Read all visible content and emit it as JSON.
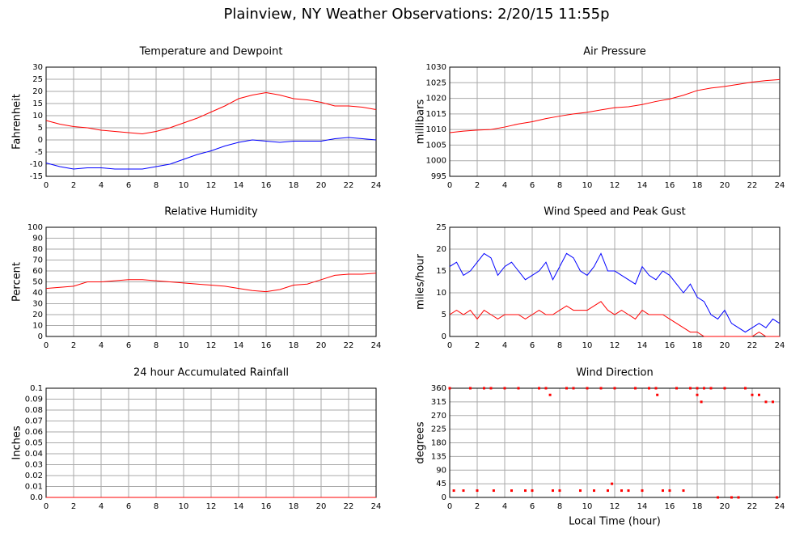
{
  "title": "Plainview, NY Weather Observations: 2/20/15 11:55p",
  "chart_data": [
    {
      "type": "line",
      "title": "Temperature and Dewpoint",
      "ylabel": "Fahrenheit",
      "x": [
        0,
        1,
        2,
        3,
        4,
        5,
        6,
        7,
        8,
        9,
        10,
        11,
        12,
        13,
        14,
        15,
        16,
        17,
        18,
        19,
        20,
        21,
        22,
        23,
        24
      ],
      "series": [
        {
          "color": "#ff0000",
          "values": [
            8,
            6.5,
            5.5,
            5,
            4,
            3.5,
            3,
            2.5,
            3.5,
            5,
            7,
            9,
            11.5,
            14,
            17,
            18.5,
            19.5,
            18.5,
            17,
            16.5,
            15.5,
            14,
            14,
            13.5,
            12.5
          ]
        },
        {
          "color": "#0000ff",
          "values": [
            -9.5,
            -11,
            -12,
            -11.5,
            -11.5,
            -12,
            -12,
            -12,
            -11,
            -10,
            -8,
            -6,
            -4.5,
            -2.5,
            -1,
            0,
            -0.5,
            -1,
            -0.5,
            -0.5,
            -0.5,
            0.5,
            1,
            0.5,
            0
          ]
        }
      ],
      "xlim": [
        0,
        24
      ],
      "xticks": [
        0,
        2,
        4,
        6,
        8,
        10,
        12,
        14,
        16,
        18,
        20,
        22,
        24
      ],
      "ylim": [
        -15,
        30
      ],
      "yticks": [
        -15,
        -10,
        -5,
        0,
        5,
        10,
        15,
        20,
        25,
        30
      ],
      "grid": true
    },
    {
      "type": "line",
      "title": "Air Pressure",
      "ylabel": "millibars",
      "x": [
        0,
        1,
        2,
        3,
        4,
        5,
        6,
        7,
        8,
        9,
        10,
        11,
        12,
        13,
        14,
        15,
        16,
        17,
        18,
        19,
        20,
        21,
        22,
        23,
        24
      ],
      "series": [
        {
          "color": "#ff0000",
          "values": [
            1009,
            1009.5,
            1009.8,
            1010,
            1010.8,
            1011.8,
            1012.5,
            1013.5,
            1014.3,
            1015,
            1015.5,
            1016.3,
            1017,
            1017.3,
            1018,
            1019,
            1019.8,
            1021,
            1022.5,
            1023.3,
            1023.8,
            1024.5,
            1025.2,
            1025.7,
            1026
          ]
        }
      ],
      "xlim": [
        0,
        24
      ],
      "xticks": [
        0,
        2,
        4,
        6,
        8,
        10,
        12,
        14,
        16,
        18,
        20,
        22,
        24
      ],
      "ylim": [
        995,
        1030
      ],
      "yticks": [
        995,
        1000,
        1005,
        1010,
        1015,
        1020,
        1025,
        1030
      ],
      "grid": true
    },
    {
      "type": "line",
      "title": "Relative Humidity",
      "ylabel": "Percent",
      "x": [
        0,
        1,
        2,
        3,
        4,
        5,
        6,
        7,
        8,
        9,
        10,
        11,
        12,
        13,
        14,
        15,
        16,
        17,
        18,
        19,
        20,
        21,
        22,
        23,
        24
      ],
      "series": [
        {
          "color": "#ff0000",
          "values": [
            44,
            45,
            46,
            50,
            50,
            51,
            52,
            52,
            51,
            50,
            49,
            48,
            47,
            46,
            44,
            42,
            41,
            43,
            47,
            48,
            52,
            56,
            57,
            57,
            58
          ]
        }
      ],
      "xlim": [
        0,
        24
      ],
      "xticks": [
        0,
        2,
        4,
        6,
        8,
        10,
        12,
        14,
        16,
        18,
        20,
        22,
        24
      ],
      "ylim": [
        0,
        100
      ],
      "yticks": [
        0,
        10,
        20,
        30,
        40,
        50,
        60,
        70,
        80,
        90,
        100
      ],
      "grid": true
    },
    {
      "type": "line",
      "title": "Wind Speed and Peak Gust",
      "ylabel": "miles/hour",
      "x": [
        0,
        0.5,
        1,
        1.5,
        2,
        2.5,
        3,
        3.5,
        4,
        4.5,
        5,
        5.5,
        6,
        6.5,
        7,
        7.5,
        8,
        8.5,
        9,
        9.5,
        10,
        10.5,
        11,
        11.5,
        12,
        12.5,
        13,
        13.5,
        14,
        14.5,
        15,
        15.5,
        16,
        16.5,
        17,
        17.5,
        18,
        18.5,
        19,
        19.5,
        20,
        20.5,
        21,
        21.5,
        22,
        22.5,
        23,
        23.5,
        24
      ],
      "series": [
        {
          "color": "#0000ff",
          "values": [
            16,
            17,
            14,
            15,
            17,
            19,
            18,
            14,
            16,
            17,
            15,
            13,
            14,
            15,
            17,
            13,
            16,
            19,
            18,
            15,
            14,
            16,
            19,
            15,
            15,
            14,
            13,
            12,
            16,
            14,
            13,
            15,
            14,
            12,
            10,
            12,
            9,
            8,
            5,
            4,
            6,
            3,
            2,
            1,
            2,
            3,
            2,
            4,
            3
          ]
        },
        {
          "color": "#ff0000",
          "values": [
            5,
            6,
            5,
            6,
            4,
            6,
            5,
            4,
            5,
            5,
            5,
            4,
            5,
            6,
            5,
            5,
            6,
            7,
            6,
            6,
            6,
            7,
            8,
            6,
            5,
            6,
            5,
            4,
            6,
            5,
            5,
            5,
            4,
            3,
            2,
            1,
            1,
            0,
            0,
            0,
            0,
            0,
            0,
            0,
            0,
            1,
            0,
            0,
            0
          ]
        }
      ],
      "xlim": [
        0,
        24
      ],
      "xticks": [
        0,
        2,
        4,
        6,
        8,
        10,
        12,
        14,
        16,
        18,
        20,
        22,
        24
      ],
      "ylim": [
        0,
        25
      ],
      "yticks": [
        0,
        5,
        10,
        15,
        20,
        25
      ],
      "grid": true
    },
    {
      "type": "line",
      "title": "24 hour Accumulated Rainfall",
      "ylabel": "Inches",
      "x": [
        0,
        24
      ],
      "series": [
        {
          "color": "#ff0000",
          "values": [
            0,
            0
          ]
        }
      ],
      "xlim": [
        0,
        24
      ],
      "xticks": [
        0,
        2,
        4,
        6,
        8,
        10,
        12,
        14,
        16,
        18,
        20,
        22,
        24
      ],
      "ylim": [
        0,
        0.1
      ],
      "yticks": [
        {
          "value": 0,
          "label": "0.0"
        },
        0.01,
        0.02,
        0.03,
        0.04,
        0.05,
        0.06,
        0.07,
        0.08,
        0.09,
        0.1
      ],
      "grid": true
    },
    {
      "type": "scatter",
      "title": "Wind Direction",
      "ylabel": "degrees",
      "xlabel": "Local Time (hour)",
      "x": [
        0,
        0.3,
        1,
        1.5,
        2,
        2.5,
        3,
        3.2,
        4,
        4.5,
        5,
        5.5,
        6,
        6.5,
        7,
        7.3,
        7.5,
        8,
        8.5,
        9,
        9.5,
        10,
        10.5,
        11,
        11.5,
        11.8,
        12,
        12.5,
        13,
        13.5,
        14,
        14.5,
        15,
        15.1,
        15.5,
        16,
        16.5,
        17,
        17.5,
        18,
        18,
        18.3,
        18.5,
        19,
        19.5,
        20,
        20.5,
        21,
        21.5,
        22,
        22.5,
        23,
        23.5,
        23.8
      ],
      "series": [
        {
          "color": "#ff0000",
          "values": [
            360,
            22.5,
            22.5,
            360,
            22.5,
            360,
            360,
            22.5,
            360,
            22.5,
            360,
            22.5,
            22.5,
            360,
            360,
            338,
            22.5,
            22.5,
            360,
            360,
            22.5,
            360,
            22.5,
            360,
            22.5,
            45,
            360,
            22.5,
            22.5,
            360,
            22.5,
            360,
            360,
            338,
            22.5,
            22.5,
            360,
            22.5,
            360,
            338,
            360,
            315,
            360,
            360,
            0,
            360,
            0,
            0,
            360,
            338,
            338,
            315,
            315,
            0
          ]
        }
      ],
      "xlim": [
        0,
        24
      ],
      "xticks": [
        0,
        2,
        4,
        6,
        8,
        10,
        12,
        14,
        16,
        18,
        20,
        22,
        24
      ],
      "ylim": [
        0,
        360
      ],
      "yticks": [
        0,
        45,
        90,
        135,
        180,
        225,
        270,
        315,
        360
      ],
      "grid": true
    }
  ]
}
